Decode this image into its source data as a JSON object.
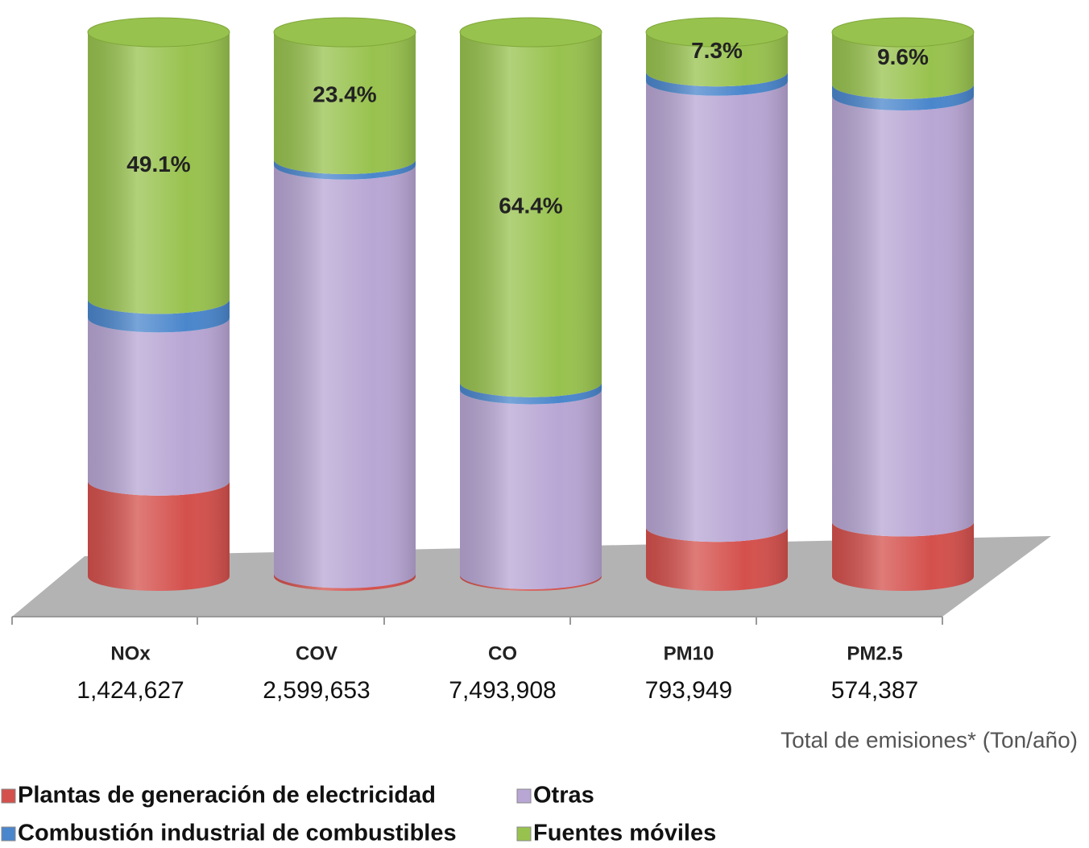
{
  "chart_data": {
    "type": "bar3d_stacked",
    "categories": [
      "NOx",
      "COV",
      "CO",
      "PM10",
      "PM2.5"
    ],
    "totals": [
      {
        "value": 1424627,
        "label": "1,424,627"
      },
      {
        "value": 2599653,
        "label": "2,599,653"
      },
      {
        "value": 7493908,
        "label": "7,493,908"
      },
      {
        "value": 793949,
        "label": "793,949"
      },
      {
        "value": 574387,
        "label": "574,387"
      }
    ],
    "totals_note": "Total de emisiones*  (Ton/año)",
    "ylim": [
      0,
      100
    ],
    "series": [
      {
        "name": "Plantas de generación de electricidad",
        "color": "#d4504c",
        "values": [
          17.5,
          0.5,
          0.3,
          9.0,
          10.0
        ]
      },
      {
        "name": "Otras",
        "color": "#b8a6d4",
        "values": [
          30.0,
          75.1,
          34.0,
          82.0,
          78.3
        ]
      },
      {
        "name": "Combustión industrial de combustibles",
        "color": "#4a86cc",
        "values": [
          3.4,
          1.0,
          1.3,
          1.7,
          2.1
        ]
      },
      {
        "name": "Fuentes móviles",
        "color": "#98c24e",
        "values": [
          49.1,
          23.4,
          64.4,
          7.3,
          9.6
        ],
        "value_labels": [
          "49.1%",
          "23.4%",
          "64.4%",
          "7.3%",
          "9.6%"
        ]
      }
    ]
  }
}
